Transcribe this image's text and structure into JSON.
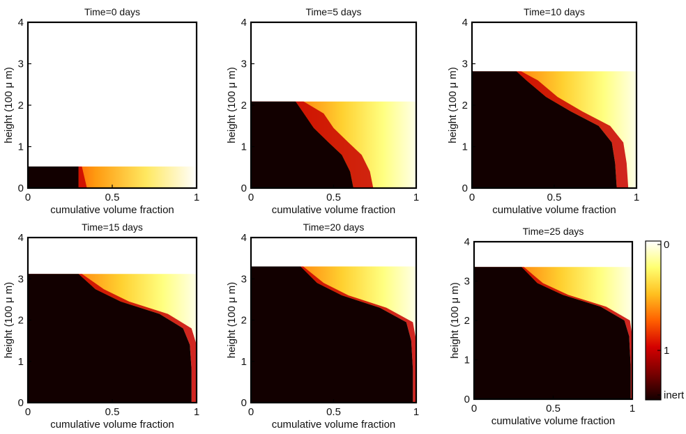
{
  "figure": {
    "colorbar": {
      "tick_labels": [
        "0",
        "1",
        "inert"
      ],
      "colors": [
        "#ffffff",
        "#ffff70",
        "#ffc020",
        "#ff6000",
        "#d40000",
        "#7a0000",
        "#140000"
      ]
    }
  },
  "chart_data": [
    {
      "type": "heatmap",
      "title": "Time=0 days",
      "xlabel": "cumulative volume fraction",
      "ylabel": "height (100 μ m)",
      "xlim": [
        0,
        1
      ],
      "ylim": [
        0,
        4
      ],
      "xticks": [
        "0",
        "0.5",
        "1"
      ],
      "yticks": [
        "0",
        "1",
        "2",
        "3",
        "4"
      ],
      "time_days": 0,
      "film_height": 0.52,
      "inert_boundary": [
        [
          0.3,
          0
        ],
        [
          0.3,
          0.52
        ]
      ],
      "red_band_width": 0.05
    },
    {
      "type": "heatmap",
      "title": "Time=5 days",
      "xlabel": "cumulative volume fraction",
      "ylabel": "height (100 μ m)",
      "xlim": [
        0,
        1
      ],
      "ylim": [
        0,
        4
      ],
      "xticks": [
        "0",
        "0.5",
        "1"
      ],
      "yticks": [
        "0",
        "1",
        "2",
        "3",
        "4"
      ],
      "time_days": 5,
      "film_height": 2.09,
      "inert_boundary": [
        [
          0.62,
          0
        ],
        [
          0.6,
          0.4
        ],
        [
          0.55,
          0.8
        ],
        [
          0.47,
          1.1
        ],
        [
          0.38,
          1.45
        ],
        [
          0.32,
          1.8
        ],
        [
          0.27,
          2.09
        ]
      ],
      "red_band_width": 0.12
    },
    {
      "type": "heatmap",
      "title": "Time=10 days",
      "xlabel": "cumulative volume fraction",
      "ylabel": "height (100 μ m)",
      "xlim": [
        0,
        1
      ],
      "ylim": [
        0,
        4
      ],
      "xticks": [
        "0",
        "0.5",
        "1"
      ],
      "yticks": [
        "0",
        "1",
        "2",
        "3",
        "4"
      ],
      "time_days": 10,
      "film_height": 2.82,
      "inert_boundary": [
        [
          0.88,
          0
        ],
        [
          0.87,
          0.6
        ],
        [
          0.85,
          1.1
        ],
        [
          0.77,
          1.5
        ],
        [
          0.6,
          1.85
        ],
        [
          0.45,
          2.2
        ],
        [
          0.33,
          2.6
        ],
        [
          0.27,
          2.82
        ]
      ],
      "red_band_width": 0.07
    },
    {
      "type": "heatmap",
      "title": "Time=15 days",
      "xlabel": "cumulative volume fraction",
      "ylabel": "height (100 μ m)",
      "xlim": [
        0,
        1
      ],
      "ylim": [
        0,
        4
      ],
      "xticks": [
        "0",
        "0.5",
        "1"
      ],
      "yticks": [
        "0",
        "1",
        "2",
        "3",
        "4"
      ],
      "time_days": 15,
      "film_height": 3.12,
      "inert_boundary": [
        [
          0.97,
          0
        ],
        [
          0.97,
          0.8
        ],
        [
          0.96,
          1.4
        ],
        [
          0.92,
          1.8
        ],
        [
          0.78,
          2.15
        ],
        [
          0.55,
          2.45
        ],
        [
          0.4,
          2.75
        ],
        [
          0.3,
          3.12
        ]
      ],
      "red_band_width": 0.05
    },
    {
      "type": "heatmap",
      "title": "Time=20 days",
      "xlabel": "cumulative volume fraction",
      "ylabel": "height (100 μ m)",
      "xlim": [
        0,
        1
      ],
      "ylim": [
        0,
        4
      ],
      "xticks": [
        "0",
        "0.5",
        "1"
      ],
      "yticks": [
        "0",
        "1",
        "2",
        "3",
        "4"
      ],
      "time_days": 20,
      "film_height": 3.3,
      "inert_boundary": [
        [
          0.98,
          0
        ],
        [
          0.98,
          0.8
        ],
        [
          0.97,
          1.5
        ],
        [
          0.94,
          1.95
        ],
        [
          0.78,
          2.3
        ],
        [
          0.55,
          2.6
        ],
        [
          0.4,
          2.9
        ],
        [
          0.3,
          3.3
        ]
      ],
      "red_band_width": 0.04
    },
    {
      "type": "heatmap",
      "title": "Time=25 days",
      "xlabel": "cumulative volume fraction",
      "ylabel": "height (100 μ m)",
      "xlim": [
        0,
        1
      ],
      "ylim": [
        0,
        4
      ],
      "xticks": [
        "0",
        "0.5",
        "1"
      ],
      "yticks": [
        "0",
        "1",
        "2",
        "3",
        "4"
      ],
      "time_days": 25,
      "film_height": 3.36,
      "inert_boundary": [
        [
          0.99,
          0
        ],
        [
          0.99,
          0.8
        ],
        [
          0.98,
          1.6
        ],
        [
          0.95,
          2.0
        ],
        [
          0.8,
          2.35
        ],
        [
          0.56,
          2.65
        ],
        [
          0.4,
          2.95
        ],
        [
          0.3,
          3.36
        ]
      ],
      "red_band_width": 0.035
    }
  ]
}
